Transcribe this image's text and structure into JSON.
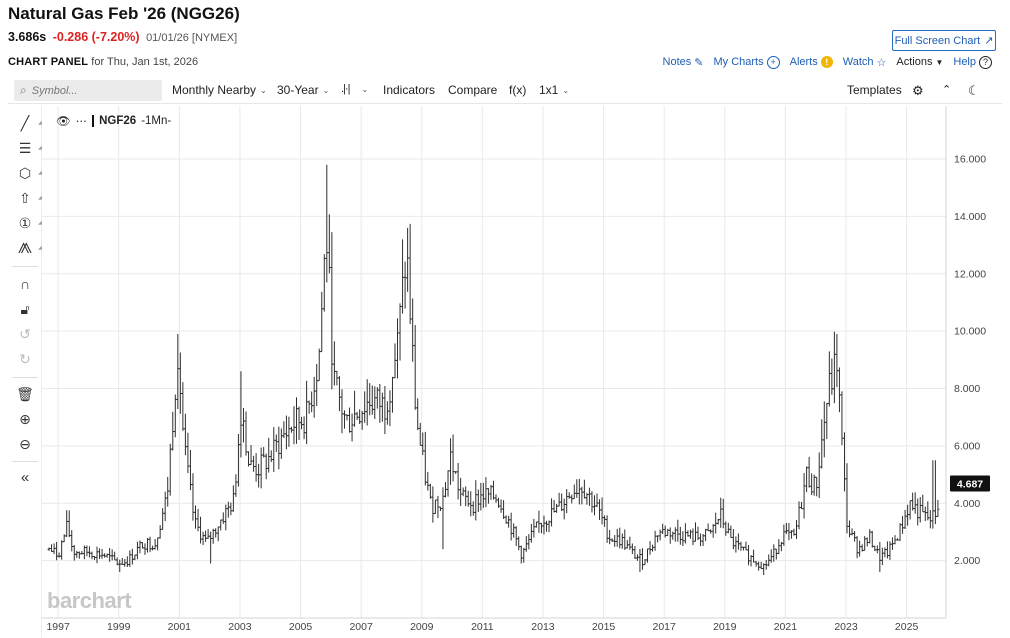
{
  "header": {
    "title": "Natural Gas Feb '26 (NGG26)",
    "last": "3.686s",
    "change": "-0.286 (-7.20%)",
    "date_exchange": "01/01/26 [NYMEX]",
    "fullscreen_label": "Full Screen Chart"
  },
  "panel": {
    "label": "CHART PANEL",
    "subtitle": "for Thu, Jan 1st, 2026"
  },
  "links": {
    "notes": "Notes",
    "mycharts": "My Charts",
    "alerts": "Alerts",
    "watch": "Watch",
    "actions": "Actions",
    "help": "Help"
  },
  "toolbar": {
    "search_placeholder": "Symbol...",
    "period": "Monthly Nearby",
    "range": "30-Year",
    "indicators": "Indicators",
    "compare": "Compare",
    "fx": "f(x)",
    "layout": "1x1",
    "templates": "Templates"
  },
  "legend": {
    "symbol": "NGF26",
    "interval": "-1Mn-"
  },
  "watermark": "barchart",
  "colors": {
    "accent": "#1f5eb5",
    "down": "#d22222",
    "bars": "#333333",
    "grid": "#e6e6e6"
  },
  "chart_data": {
    "type": "ohlc",
    "y_ticks": [
      "2.000",
      "4.000",
      "6.000",
      "8.000",
      "10.000",
      "12.000",
      "14.000",
      "16.000"
    ],
    "ylim": [
      0.0,
      17.5
    ],
    "x_tick_labels": [
      "1997",
      "1999",
      "2001",
      "2003",
      "2005",
      "2007",
      "2009",
      "2011",
      "2013",
      "2015",
      "2017",
      "2019",
      "2021",
      "2023",
      "2025"
    ],
    "xlim": [
      1996.6,
      2026.3
    ],
    "last_value_label": "4.687",
    "last_value": 4.687,
    "anchors": [
      [
        1996.7,
        2.4
      ],
      [
        1997.0,
        2.2
      ],
      [
        1997.3,
        3.2
      ],
      [
        1997.5,
        2.3
      ],
      [
        1998.0,
        2.3
      ],
      [
        1998.5,
        2.2
      ],
      [
        1999.0,
        1.9
      ],
      [
        1999.3,
        2.0
      ],
      [
        1999.8,
        2.6
      ],
      [
        2000.2,
        2.6
      ],
      [
        2000.6,
        4.3
      ],
      [
        2000.95,
        9.4
      ],
      [
        2001.15,
        6.0
      ],
      [
        2001.5,
        3.3
      ],
      [
        2001.9,
        2.6
      ],
      [
        2002.3,
        3.3
      ],
      [
        2002.8,
        4.1
      ],
      [
        2003.05,
        7.5
      ],
      [
        2003.3,
        5.3
      ],
      [
        2003.6,
        5.2
      ],
      [
        2004.0,
        5.6
      ],
      [
        2004.4,
        6.3
      ],
      [
        2004.8,
        6.8
      ],
      [
        2005.2,
        7.0
      ],
      [
        2005.6,
        9.0
      ],
      [
        2005.85,
        13.5
      ],
      [
        2006.1,
        8.2
      ],
      [
        2006.5,
        6.8
      ],
      [
        2006.9,
        7.2
      ],
      [
        2007.3,
        7.6
      ],
      [
        2007.8,
        7.4
      ],
      [
        2008.2,
        9.5
      ],
      [
        2008.5,
        12.8
      ],
      [
        2008.8,
        7.2
      ],
      [
        2009.0,
        5.6
      ],
      [
        2009.3,
        3.9
      ],
      [
        2009.7,
        4.2
      ],
      [
        2009.95,
        5.6
      ],
      [
        2010.3,
        4.2
      ],
      [
        2010.7,
        4.0
      ],
      [
        2011.0,
        4.3
      ],
      [
        2011.5,
        4.2
      ],
      [
        2011.9,
        3.3
      ],
      [
        2012.3,
        2.2
      ],
      [
        2012.7,
        3.0
      ],
      [
        2013.0,
        3.4
      ],
      [
        2013.5,
        3.8
      ],
      [
        2014.0,
        4.5
      ],
      [
        2014.3,
        4.6
      ],
      [
        2014.8,
        3.8
      ],
      [
        2015.2,
        2.8
      ],
      [
        2015.6,
        2.7
      ],
      [
        2016.0,
        2.2
      ],
      [
        2016.3,
        2.0
      ],
      [
        2016.8,
        3.0
      ],
      [
        2017.2,
        3.0
      ],
      [
        2017.6,
        2.9
      ],
      [
        2018.0,
        2.8
      ],
      [
        2018.5,
        2.9
      ],
      [
        2018.85,
        3.6
      ],
      [
        2019.2,
        2.7
      ],
      [
        2019.6,
        2.3
      ],
      [
        2020.0,
        2.0
      ],
      [
        2020.3,
        1.8
      ],
      [
        2020.6,
        2.2
      ],
      [
        2020.9,
        2.9
      ],
      [
        2021.3,
        2.8
      ],
      [
        2021.7,
        5.0
      ],
      [
        2022.0,
        4.5
      ],
      [
        2022.4,
        7.8
      ],
      [
        2022.7,
        9.0
      ],
      [
        2022.9,
        5.4
      ],
      [
        2023.05,
        3.1
      ],
      [
        2023.4,
        2.4
      ],
      [
        2023.8,
        2.8
      ],
      [
        2024.1,
        2.1
      ],
      [
        2024.4,
        2.3
      ],
      [
        2024.8,
        3.1
      ],
      [
        2025.1,
        4.0
      ],
      [
        2025.5,
        3.6
      ],
      [
        2025.8,
        3.4
      ],
      [
        2026.0,
        3.7
      ],
      [
        2026.1,
        4.6
      ]
    ],
    "peaks": [
      [
        2000.95,
        9.9
      ],
      [
        2003.05,
        8.6
      ],
      [
        2005.85,
        15.8
      ],
      [
        2008.5,
        13.6
      ],
      [
        2022.7,
        9.9
      ],
      [
        2025.9,
        5.5
      ]
    ],
    "troughs": [
      [
        1999.0,
        1.6
      ],
      [
        2002.0,
        1.9
      ],
      [
        2009.7,
        2.4
      ],
      [
        2012.3,
        1.9
      ],
      [
        2016.2,
        1.6
      ],
      [
        2020.3,
        1.5
      ],
      [
        2024.1,
        1.6
      ]
    ]
  }
}
